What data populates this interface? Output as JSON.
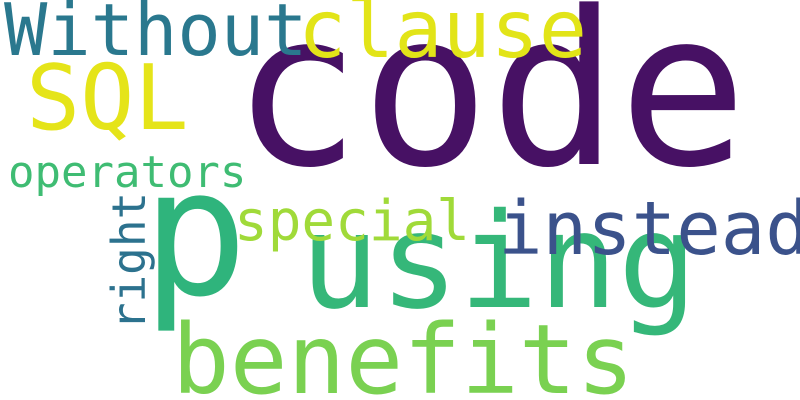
{
  "words": [
    {
      "key": "code",
      "text": "code",
      "color": "#471164"
    },
    {
      "key": "p",
      "text": "p",
      "color": "#2fb47c"
    },
    {
      "key": "using",
      "text": "using",
      "color": "#35b779"
    },
    {
      "key": "benefits",
      "text": "benefits",
      "color": "#7ad151"
    },
    {
      "key": "without",
      "text": "Without",
      "color": "#2a788e"
    },
    {
      "key": "clause",
      "text": "clause",
      "color": "#e2e418"
    },
    {
      "key": "sql",
      "text": "SQL",
      "color": "#e5e419"
    },
    {
      "key": "operators",
      "text": "operators",
      "color": "#3fbc73"
    },
    {
      "key": "special",
      "text": "special",
      "color": "#a0da39"
    },
    {
      "key": "instead",
      "text": "instead",
      "color": "#3b528b"
    },
    {
      "key": "right",
      "text": "right",
      "color": "#2c728e"
    }
  ]
}
